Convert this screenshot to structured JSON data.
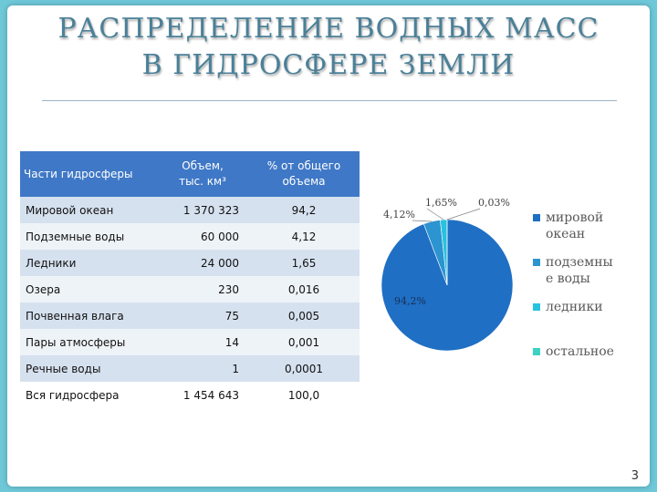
{
  "title": {
    "line1": "РАСПРЕДЕЛЕНИЕ ВОДНЫХ МАСС",
    "line2": "В ГИДРОСФЕРЕ ЗЕМЛИ"
  },
  "table": {
    "headers": {
      "part": "Части гидросферы",
      "volume_line1": "Объем,",
      "volume_line2": "тыс. км³",
      "percent_line1": "% от общего",
      "percent_line2": "объема"
    },
    "rows": [
      {
        "name": "Мировой океан",
        "volume": "1 370 323",
        "percent": "94,2"
      },
      {
        "name": "Подземные воды",
        "volume": "60 000",
        "percent": "4,12"
      },
      {
        "name": "Ледники",
        "volume": "24 000",
        "percent": "1,65"
      },
      {
        "name": "Озера",
        "volume": "230",
        "percent": "0,016"
      },
      {
        "name": "Почвенная влага",
        "volume": "75",
        "percent": "0,005"
      },
      {
        "name": "Пары атмосферы",
        "volume": "14",
        "percent": "0,001"
      },
      {
        "name": "Речные воды",
        "volume": "1",
        "percent": "0,0001"
      },
      {
        "name": "Вся гидросфера",
        "volume": "1 454 643",
        "percent": "100,0"
      }
    ]
  },
  "chart_data": {
    "type": "pie",
    "series": [
      {
        "label": "мировой океан",
        "value": 94.2,
        "display": "94,2%",
        "color": "#1f6fc4"
      },
      {
        "label": "подземные воды",
        "value": 4.12,
        "display": "4,12%",
        "color": "#2c94d0"
      },
      {
        "label": "ледники",
        "value": 1.65,
        "display": "1,65%",
        "color": "#27c2df"
      },
      {
        "label": "остальное",
        "value": 0.03,
        "display": "0,03%",
        "color": "#3bd1c3"
      }
    ],
    "legend_position": "right"
  },
  "legend": {
    "items": [
      {
        "line1": "мировой",
        "line2": "океан",
        "color": "#1f6fc4"
      },
      {
        "line1": "подземны",
        "line2": "е воды",
        "color": "#2c94d0"
      },
      {
        "line1": "ледники",
        "line2": "",
        "color": "#27c2df"
      },
      {
        "line1": "остальное",
        "line2": "",
        "color": "#3bd1c3"
      }
    ]
  },
  "page_number": "3"
}
